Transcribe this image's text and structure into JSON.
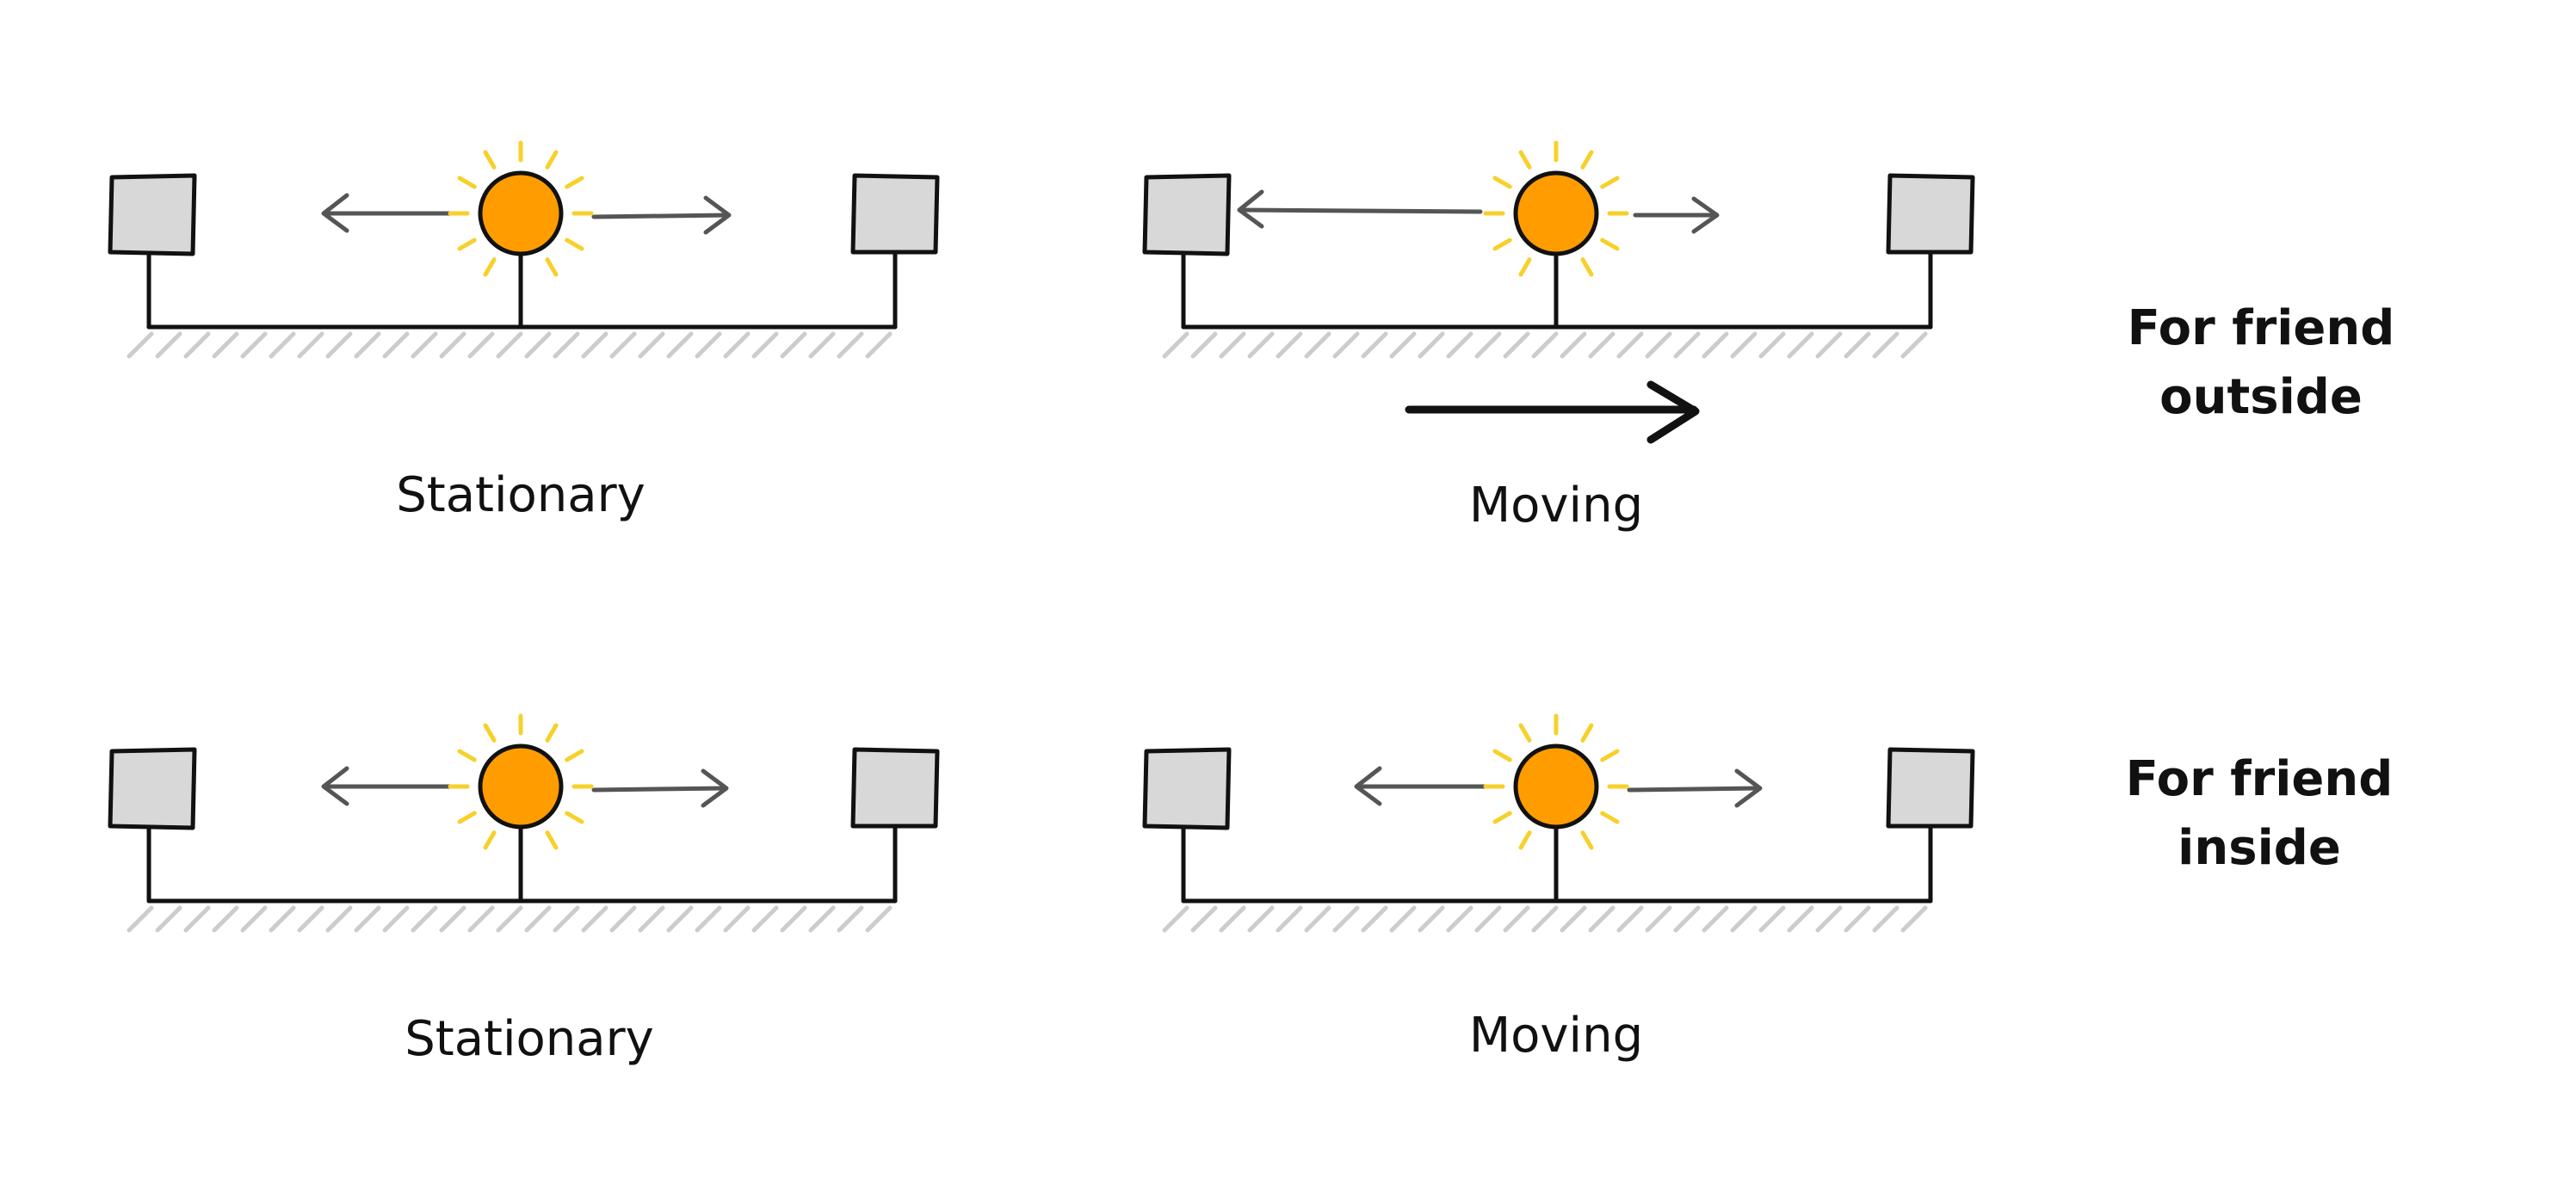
{
  "panels": [
    {
      "id": "outside-stationary",
      "caption": "Stationary",
      "state": "stationary",
      "left_arrow_length": "long",
      "right_arrow_length": "long"
    },
    {
      "id": "outside-moving",
      "caption": "Moving",
      "state": "moving",
      "left_arrow_length": "long",
      "right_arrow_length": "short"
    },
    {
      "id": "inside-stationary",
      "caption": "Stationary",
      "state": "stationary",
      "left_arrow_length": "long",
      "right_arrow_length": "long"
    },
    {
      "id": "inside-moving",
      "caption": "Moving",
      "state": "moving",
      "left_arrow_length": "long",
      "right_arrow_length": "long"
    }
  ],
  "row_labels": {
    "outside": [
      "For friend",
      "outside"
    ],
    "inside": [
      "For friend",
      "inside"
    ]
  },
  "colors": {
    "light_fill": "#ff9d00",
    "light_rays": "#f7d02a",
    "box_fill": "#d8d8d8",
    "line": "#111111",
    "light_arrow": "#555555",
    "ground_hatch": "#cccccc"
  },
  "icons": {
    "light": "light-bulb-icon",
    "detector": "detector-box-icon",
    "motion": "motion-arrow-icon"
  }
}
